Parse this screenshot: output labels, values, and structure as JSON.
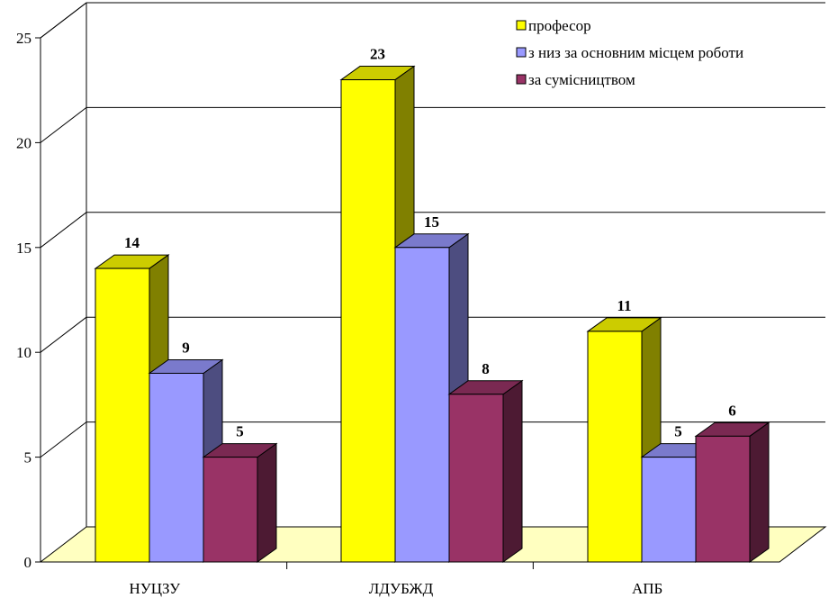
{
  "chart_data": {
    "type": "bar",
    "categories": [
      "НУЦЗУ",
      "ЛДУБЖД",
      "АПБ"
    ],
    "series": [
      {
        "name": "професор",
        "values": [
          14,
          23,
          11
        ],
        "color": "#FFFF00",
        "side_color": "#808000",
        "top_color": "#CCCC00"
      },
      {
        "name": "з низ за основним місцем роботи",
        "values": [
          9,
          15,
          5
        ],
        "color": "#9999FF",
        "side_color": "#4D4D80",
        "top_color": "#7A7ACC"
      },
      {
        "name": "за сумісництвом",
        "values": [
          5,
          8,
          6
        ],
        "color": "#993366",
        "side_color": "#4D1A33",
        "top_color": "#7A2952"
      }
    ],
    "ylim": [
      0,
      25
    ],
    "yticks": [
      0,
      5,
      10,
      15,
      20,
      25
    ],
    "grid": true,
    "legend_position": "top-right",
    "floor_color": "#FFFFC0",
    "title": "",
    "xlabel": "",
    "ylabel": ""
  }
}
